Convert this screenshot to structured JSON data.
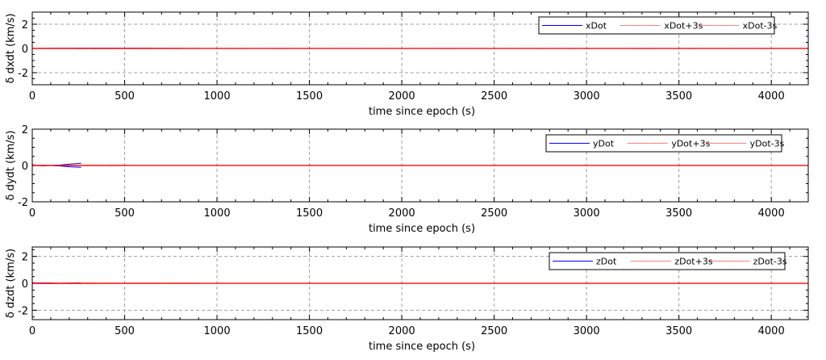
{
  "chart_data": [
    {
      "type": "line",
      "xlabel": "time since epoch (s)",
      "ylabel": "δ dxdt (km/s)",
      "xlim": [
        0,
        4200
      ],
      "ylim": [
        -3,
        3
      ],
      "xticks": [
        0,
        500,
        1000,
        1500,
        2000,
        2500,
        3000,
        3500,
        4000
      ],
      "yticks": [
        -2,
        0,
        2
      ],
      "grid": true,
      "legend_position": "top-right",
      "series": [
        {
          "name": "xDot",
          "color": "#0000ff",
          "style": "solid",
          "x": [
            0,
            100,
            200,
            265,
            1000,
            2000,
            3000,
            4200
          ],
          "y": [
            0,
            0.005,
            0.01,
            0.015,
            0,
            0,
            0,
            0
          ]
        },
        {
          "name": "xDot+3s",
          "color": "#ff0000",
          "style": "dotted",
          "x": [
            0,
            100,
            200,
            265,
            1000,
            2000,
            3000,
            4200
          ],
          "y": [
            0.02,
            0.02,
            0.02,
            0.02,
            0.01,
            0.01,
            0.01,
            0.01
          ]
        },
        {
          "name": "xDot-3s",
          "color": "#ff0000",
          "style": "dotted",
          "x": [
            0,
            100,
            200,
            265,
            1000,
            2000,
            3000,
            4200
          ],
          "y": [
            -0.02,
            -0.02,
            -0.02,
            -0.02,
            -0.01,
            -0.01,
            -0.01,
            -0.01
          ]
        }
      ]
    },
    {
      "type": "line",
      "xlabel": "time since epoch (s)",
      "ylabel": "δ dydt (km/s)",
      "xlim": [
        0,
        4200
      ],
      "ylim": [
        -2,
        2
      ],
      "xticks": [
        0,
        500,
        1000,
        1500,
        2000,
        2500,
        3000,
        3500,
        4000
      ],
      "yticks": [
        -2,
        0,
        2
      ],
      "grid": true,
      "legend_position": "top-right",
      "series": [
        {
          "name": "yDot",
          "color": "#0000ff",
          "style": "solid",
          "x": [
            0,
            20,
            60,
            100,
            150,
            200,
            265
          ],
          "y": [
            0.05,
            0.0,
            -0.02,
            0.0,
            0.02,
            0.07,
            0.12
          ]
        },
        {
          "name": "yDot+3s",
          "color": "#ff0000",
          "style": "dotted",
          "x": [
            0,
            20,
            60,
            100,
            150,
            200,
            265,
            1000,
            2000,
            3000,
            4200
          ],
          "y": [
            0.03,
            0.02,
            0.01,
            0.01,
            0.01,
            0.01,
            0.01,
            0.005,
            0.005,
            0.005,
            0.005
          ]
        },
        {
          "name": "yDot-3s",
          "color": "#ff0000",
          "style": "dotted",
          "x": [
            0,
            20,
            60,
            100,
            150,
            200,
            265,
            1000,
            2000,
            3000,
            4200
          ],
          "y": [
            -0.03,
            -0.02,
            -0.01,
            -0.01,
            -0.01,
            -0.01,
            -0.01,
            -0.005,
            -0.005,
            -0.005,
            -0.005
          ]
        }
      ],
      "extra_lines": [
        {
          "color": "#0000ff",
          "x": [
            100,
            150,
            200,
            265
          ],
          "y": [
            0.0,
            -0.03,
            -0.07,
            -0.1
          ]
        }
      ]
    },
    {
      "type": "line",
      "xlabel": "time since epoch (s)",
      "ylabel": "δ dzdt (km/s)",
      "xlim": [
        0,
        4200
      ],
      "ylim": [
        -2.7,
        2.7
      ],
      "xticks": [
        0,
        500,
        1000,
        1500,
        2000,
        2500,
        3000,
        3500,
        4000
      ],
      "yticks": [
        -2,
        0,
        2
      ],
      "grid": true,
      "legend_position": "top-right",
      "series": [
        {
          "name": "zDot",
          "color": "#0000ff",
          "style": "solid",
          "x": [
            0,
            20,
            60,
            100,
            150,
            200,
            265
          ],
          "y": [
            0.05,
            0.02,
            0.03,
            0.03,
            0.0,
            0.02,
            0.03
          ]
        },
        {
          "name": "zDot+3s",
          "color": "#ff0000",
          "style": "dotted",
          "x": [
            0,
            100,
            265,
            1000,
            2000,
            3000,
            4200
          ],
          "y": [
            0.02,
            0.02,
            0.02,
            0.01,
            0.01,
            0.01,
            0.01
          ]
        },
        {
          "name": "zDot-3s",
          "color": "#ff0000",
          "style": "dotted",
          "x": [
            0,
            100,
            265,
            1000,
            2000,
            3000,
            4200
          ],
          "y": [
            -0.02,
            -0.02,
            -0.02,
            -0.01,
            -0.01,
            -0.01,
            -0.01
          ]
        }
      ]
    }
  ]
}
